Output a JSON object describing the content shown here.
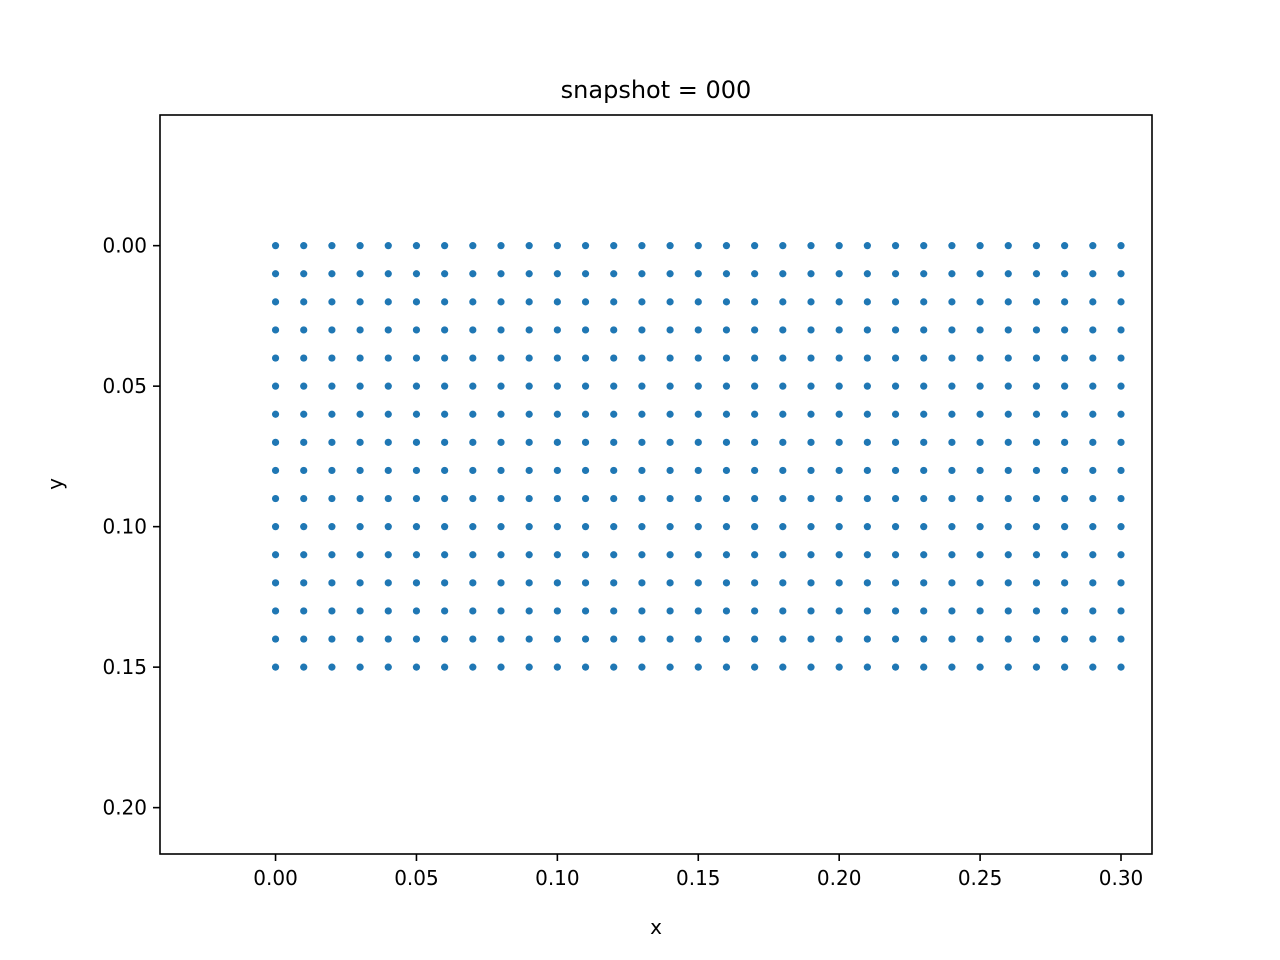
{
  "chart_data": {
    "type": "scatter",
    "title": "snapshot = 000",
    "xlabel": "x",
    "ylabel": "y",
    "xlim": [
      -0.041,
      0.311
    ],
    "ylim": [
      -0.0465,
      0.2165
    ],
    "y_inverted": true,
    "x_ticks": [
      0.0,
      0.05,
      0.1,
      0.15,
      0.2,
      0.25,
      0.3
    ],
    "x_tick_labels": [
      "0.00",
      "0.05",
      "0.10",
      "0.15",
      "0.20",
      "0.25",
      "0.30"
    ],
    "y_ticks": [
      0.0,
      0.05,
      0.1,
      0.15,
      0.2
    ],
    "y_tick_labels": [
      "0.00",
      "0.05",
      "0.10",
      "0.15",
      "0.20"
    ],
    "grid": false,
    "legend": "none",
    "series": [
      {
        "color": "#1f77b4",
        "marker": "dot",
        "x_grid": {
          "start": 0.0,
          "stop": 0.3,
          "step": 0.01
        },
        "y_grid": {
          "start": 0.0,
          "stop": 0.15,
          "step": 0.01
        }
      }
    ]
  }
}
